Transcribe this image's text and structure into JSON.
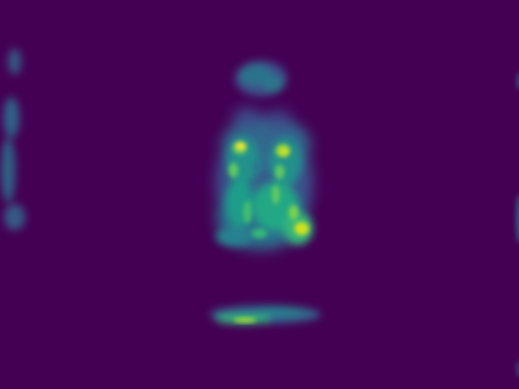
{
  "image": {
    "kind": "attention heatmap",
    "colormap": "viridis",
    "background_color": "#440154",
    "palette": {
      "low": "#440154",
      "mid_low": "#31688e",
      "mid": "#26828e",
      "mid_high": "#35b779",
      "high": "#a0da39",
      "peak": "#fde725"
    },
    "regions": [
      "left-edge-streak",
      "top-head-blob",
      "central-owl-figure",
      "bottom-horizontal-streak",
      "right-edge-streak"
    ]
  }
}
